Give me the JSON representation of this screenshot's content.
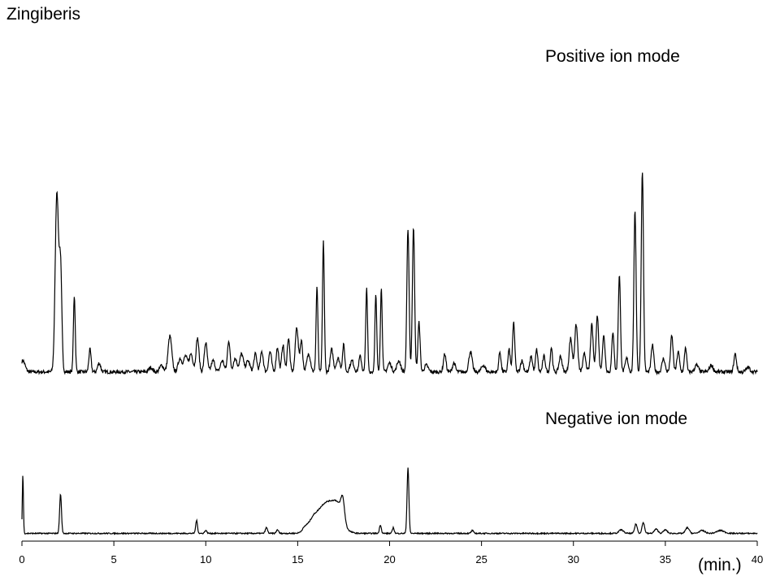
{
  "title": "Zingiberis",
  "chart_data": {
    "type": "line",
    "x_unit": "(min.)",
    "xlim": [
      0,
      40
    ],
    "x_ticks": [
      0,
      5,
      10,
      15,
      20,
      25,
      30,
      35,
      40
    ],
    "x_tick_labels": [
      "0",
      "5",
      "10",
      "15",
      "20",
      "25",
      "30",
      "35",
      "40"
    ],
    "y_axis_shown": false,
    "grid": false,
    "series": [
      {
        "name": "Positive ion mode",
        "color": "#000000",
        "baseline": 3,
        "ylim": [
          0,
          100
        ],
        "peaks": [
          [
            0.05,
            5,
            0.12
          ],
          [
            1.9,
            80,
            0.09
          ],
          [
            2.1,
            46,
            0.07
          ],
          [
            2.85,
            34,
            0.05
          ],
          [
            3.7,
            10,
            0.06
          ],
          [
            4.2,
            4,
            0.08
          ],
          [
            7.0,
            2,
            0.1
          ],
          [
            7.6,
            3,
            0.1
          ],
          [
            8.05,
            16,
            0.1
          ],
          [
            8.6,
            6,
            0.1
          ],
          [
            8.9,
            7,
            0.1
          ],
          [
            9.2,
            8,
            0.1
          ],
          [
            9.55,
            15,
            0.08
          ],
          [
            10.0,
            13,
            0.08
          ],
          [
            10.4,
            5,
            0.1
          ],
          [
            10.9,
            5,
            0.1
          ],
          [
            11.25,
            14,
            0.07
          ],
          [
            11.6,
            6,
            0.1
          ],
          [
            11.95,
            8,
            0.1
          ],
          [
            12.3,
            5,
            0.1
          ],
          [
            12.7,
            8,
            0.08
          ],
          [
            13.05,
            9,
            0.08
          ],
          [
            13.5,
            9,
            0.08
          ],
          [
            13.9,
            11,
            0.07
          ],
          [
            14.2,
            12,
            0.07
          ],
          [
            14.5,
            15,
            0.07
          ],
          [
            14.95,
            20,
            0.08
          ],
          [
            15.2,
            14,
            0.07
          ],
          [
            15.6,
            8,
            0.1
          ],
          [
            16.05,
            38,
            0.05
          ],
          [
            16.4,
            58,
            0.05
          ],
          [
            16.85,
            10,
            0.08
          ],
          [
            17.2,
            6,
            0.1
          ],
          [
            17.5,
            12,
            0.06
          ],
          [
            17.95,
            5,
            0.1
          ],
          [
            18.4,
            7,
            0.07
          ],
          [
            18.75,
            37,
            0.05
          ],
          [
            19.25,
            34,
            0.05
          ],
          [
            19.55,
            37,
            0.05
          ],
          [
            20.0,
            4,
            0.1
          ],
          [
            20.5,
            5,
            0.1
          ],
          [
            21.0,
            64,
            0.06
          ],
          [
            21.3,
            65,
            0.06
          ],
          [
            21.6,
            22,
            0.06
          ],
          [
            22.0,
            3,
            0.1
          ],
          [
            23.0,
            8,
            0.07
          ],
          [
            23.5,
            4,
            0.08
          ],
          [
            24.4,
            9,
            0.09
          ],
          [
            25.1,
            3,
            0.1
          ],
          [
            26.0,
            9,
            0.06
          ],
          [
            26.5,
            10,
            0.06
          ],
          [
            26.75,
            22,
            0.06
          ],
          [
            27.2,
            5,
            0.08
          ],
          [
            27.7,
            7,
            0.07
          ],
          [
            28.0,
            10,
            0.06
          ],
          [
            28.4,
            7,
            0.07
          ],
          [
            28.8,
            11,
            0.06
          ],
          [
            29.3,
            7,
            0.08
          ],
          [
            29.85,
            15,
            0.08
          ],
          [
            30.15,
            21,
            0.08
          ],
          [
            30.6,
            8,
            0.08
          ],
          [
            31.0,
            21,
            0.07
          ],
          [
            31.3,
            25,
            0.07
          ],
          [
            31.65,
            16,
            0.07
          ],
          [
            32.15,
            18,
            0.06
          ],
          [
            32.5,
            43,
            0.06
          ],
          [
            32.9,
            6,
            0.08
          ],
          [
            33.35,
            72,
            0.06
          ],
          [
            33.75,
            90,
            0.06
          ],
          [
            34.3,
            12,
            0.07
          ],
          [
            34.9,
            6,
            0.08
          ],
          [
            35.35,
            16,
            0.07
          ],
          [
            35.7,
            9,
            0.07
          ],
          [
            36.1,
            11,
            0.06
          ],
          [
            36.7,
            3,
            0.1
          ],
          [
            37.5,
            3,
            0.1
          ],
          [
            38.8,
            8,
            0.07
          ],
          [
            39.5,
            2,
            0.1
          ]
        ]
      },
      {
        "name": "Negative ion mode",
        "color": "#000000",
        "baseline": 4,
        "ylim": [
          0,
          100
        ],
        "peaks": [
          [
            0.05,
            82,
            0.03
          ],
          [
            2.1,
            55,
            0.05
          ],
          [
            9.5,
            18,
            0.05
          ],
          [
            10.0,
            4,
            0.06
          ],
          [
            13.3,
            8,
            0.06
          ],
          [
            13.9,
            5,
            0.06
          ],
          [
            15.4,
            6,
            0.15
          ],
          [
            15.8,
            8,
            0.2
          ],
          [
            16.35,
            32,
            0.45
          ],
          [
            17.0,
            28,
            0.4
          ],
          [
            17.45,
            30,
            0.1
          ],
          [
            17.2,
            12,
            0.2
          ],
          [
            19.5,
            12,
            0.05
          ],
          [
            20.2,
            8,
            0.05
          ],
          [
            21.0,
            92,
            0.05
          ],
          [
            24.5,
            4,
            0.06
          ],
          [
            32.6,
            5,
            0.12
          ],
          [
            33.4,
            13,
            0.07
          ],
          [
            33.8,
            15,
            0.07
          ],
          [
            34.5,
            6,
            0.1
          ],
          [
            35.0,
            5,
            0.1
          ],
          [
            36.2,
            8,
            0.1
          ],
          [
            37.0,
            4,
            0.15
          ],
          [
            38.0,
            4,
            0.2
          ]
        ]
      }
    ]
  }
}
